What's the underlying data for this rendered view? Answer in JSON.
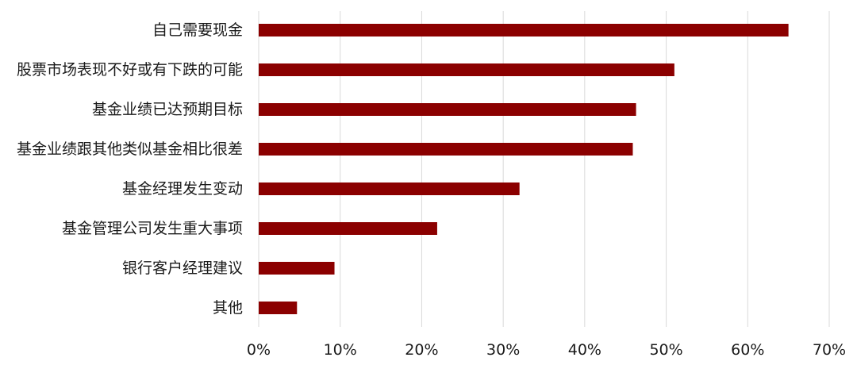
{
  "chart_data": {
    "type": "bar",
    "orientation": "horizontal",
    "title": "",
    "xlabel": "",
    "ylabel": "",
    "categories": [
      "自己需要现金",
      "股票市场表现不好或有下跌的可能",
      "基金业绩已达预期目标",
      "基金业绩跟其他类似基金相比很差",
      "基金经理发生变动",
      "基金管理公司发生重大事项",
      "银行客户经理建议",
      "其他"
    ],
    "values": [
      65,
      51,
      46.3,
      45.9,
      32,
      21.9,
      9.3,
      4.7
    ],
    "value_unit": "%",
    "xlim": [
      0,
      70
    ],
    "x_ticks": [
      0,
      10,
      20,
      30,
      40,
      50,
      60,
      70
    ],
    "x_tick_labels": [
      "0%",
      "10%",
      "20%",
      "30%",
      "40%",
      "50%",
      "60%",
      "70%"
    ],
    "grid": "vertical",
    "legend": "none",
    "bar_color": "#8b0000"
  }
}
